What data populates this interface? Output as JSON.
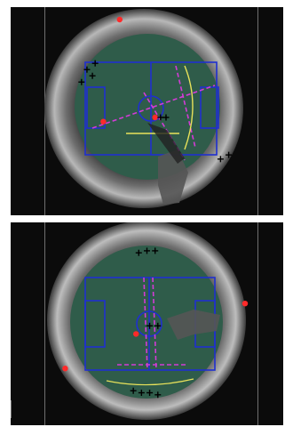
{
  "views": [
    {
      "id": "top",
      "markers": {
        "red": [
          [
            0.34,
            0.55
          ],
          [
            0.53,
            0.53
          ],
          [
            0.4,
            0.06
          ]
        ],
        "black_cross": [
          [
            0.28,
            0.3
          ],
          [
            0.31,
            0.27
          ],
          [
            0.3,
            0.33
          ],
          [
            0.26,
            0.36
          ],
          [
            0.55,
            0.53
          ],
          [
            0.57,
            0.53
          ],
          [
            0.77,
            0.73
          ],
          [
            0.8,
            0.71
          ]
        ]
      }
    },
    {
      "id": "bottom",
      "markers": {
        "red": [
          [
            0.46,
            0.55
          ],
          [
            0.2,
            0.72
          ],
          [
            0.86,
            0.4
          ]
        ],
        "black_cross": [
          [
            0.47,
            0.15
          ],
          [
            0.5,
            0.14
          ],
          [
            0.53,
            0.14
          ],
          [
            0.45,
            0.83
          ],
          [
            0.48,
            0.84
          ],
          [
            0.51,
            0.84
          ],
          [
            0.54,
            0.85
          ],
          [
            0.54,
            0.51
          ],
          [
            0.51,
            0.51
          ]
        ]
      }
    }
  ],
  "colors": {
    "background": "#0b0b0b",
    "pitch": "#2f5c4a",
    "field_lines": "#1f2fd0",
    "tracking_lines": "#d33bd6",
    "yellow_lines": "#e8e25a",
    "red_marker": "#ff2a2a",
    "black_marker": "#000000"
  }
}
